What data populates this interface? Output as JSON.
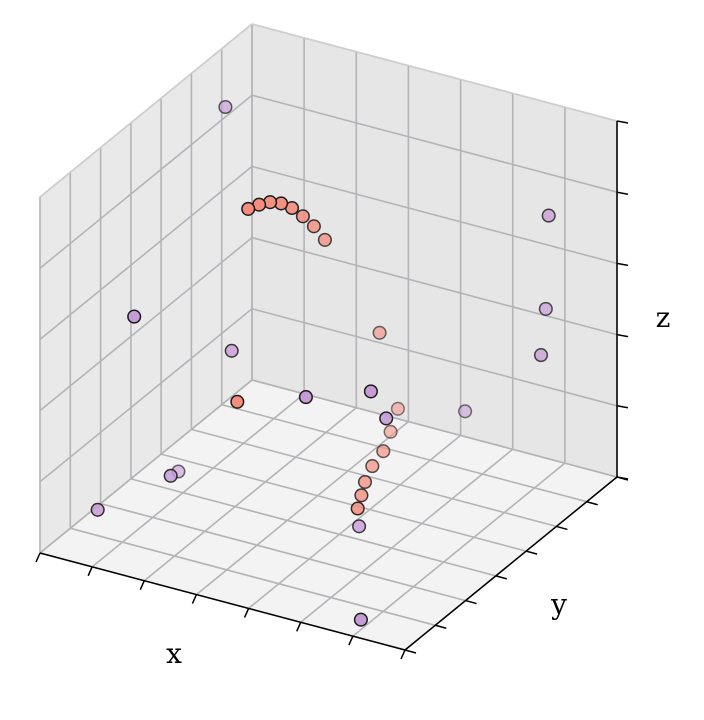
{
  "chart_data": {
    "type": "scatter",
    "title": "",
    "xlabel": "x",
    "ylabel": "y",
    "zlabel": "z",
    "grid": true,
    "tick_labels_shown": false,
    "colors": {
      "purple": "#c79bd6",
      "salmon": "#f58c7d",
      "edge": "#1a1a1a",
      "pane_left": "#e9e9e9",
      "pane_right": "#e6e6e6",
      "pane_floor": "#f3f3f3",
      "grid": "#b4b4b8"
    },
    "points": [
      {
        "x": 0.9,
        "y": 0.85,
        "z": 0.78,
        "group": "purple",
        "alpha": 0.75
      },
      {
        "x": 0.2,
        "y": 0.1,
        "z": 0.67,
        "group": "purple",
        "alpha": 1.0
      },
      {
        "x": 0.95,
        "y": 0.75,
        "z": 0.58,
        "group": "purple",
        "alpha": 0.7
      },
      {
        "x": 0.38,
        "y": 0.25,
        "z": 0.55,
        "group": "purple",
        "alpha": 0.8
      },
      {
        "x": 0.02,
        "y": 0.84,
        "z": 0.85,
        "group": "purple",
        "alpha": 0.65
      },
      {
        "x": 0.6,
        "y": 0.6,
        "z": 0.25,
        "group": "purple",
        "alpha": 0.9
      },
      {
        "x": 0.5,
        "y": 0.7,
        "z": 0.25,
        "group": "purple",
        "alpha": 1.0
      },
      {
        "x": 0.38,
        "y": 0.6,
        "z": 0.25,
        "group": "purple",
        "alpha": 1.0
      },
      {
        "x": 0.3,
        "y": 0.1,
        "z": 0.25,
        "group": "purple",
        "alpha": 0.85
      },
      {
        "x": 0.7,
        "y": 0.3,
        "z": 0.12,
        "group": "purple",
        "alpha": 0.8
      },
      {
        "x": 0.85,
        "y": 0.05,
        "z": 0.02,
        "group": "purple",
        "alpha": 1.0
      },
      {
        "x": 0.7,
        "y": 0.8,
        "z": 0.2,
        "group": "purple",
        "alpha": 0.55
      },
      {
        "x": 0.1,
        "y": 0.1,
        "z": 0.1,
        "group": "purple",
        "alpha": 0.85
      },
      {
        "x": 0.85,
        "y": 0.9,
        "z": 0.35,
        "group": "purple",
        "alpha": 0.75
      },
      {
        "x": 0.35,
        "y": 0.05,
        "z": 0.3,
        "group": "purple",
        "alpha": 0.6
      },
      {
        "x": 0.25,
        "y": 0.5,
        "z": 0.25,
        "group": "salmon",
        "alpha": 1.0
      },
      {
        "x": 0.28,
        "y": 0.5,
        "z": 0.8,
        "group": "salmon",
        "alpha": 1.0
      },
      {
        "x": 0.31,
        "y": 0.5,
        "z": 0.82,
        "group": "salmon",
        "alpha": 1.0
      },
      {
        "x": 0.34,
        "y": 0.5,
        "z": 0.835,
        "group": "salmon",
        "alpha": 0.95
      },
      {
        "x": 0.37,
        "y": 0.5,
        "z": 0.84,
        "group": "salmon",
        "alpha": 0.95
      },
      {
        "x": 0.4,
        "y": 0.5,
        "z": 0.835,
        "group": "salmon",
        "alpha": 0.9
      },
      {
        "x": 0.43,
        "y": 0.5,
        "z": 0.82,
        "group": "salmon",
        "alpha": 0.85
      },
      {
        "x": 0.46,
        "y": 0.5,
        "z": 0.8,
        "group": "salmon",
        "alpha": 0.8
      },
      {
        "x": 0.49,
        "y": 0.5,
        "z": 0.77,
        "group": "salmon",
        "alpha": 0.75
      },
      {
        "x": 0.64,
        "y": 0.5,
        "z": 0.55,
        "group": "salmon",
        "alpha": 0.6
      },
      {
        "x": 0.69,
        "y": 0.5,
        "z": 0.35,
        "group": "salmon",
        "alpha": 0.5
      },
      {
        "x": 0.67,
        "y": 0.5,
        "z": 0.28,
        "group": "salmon",
        "alpha": 0.55
      },
      {
        "x": 0.65,
        "y": 0.5,
        "z": 0.22,
        "group": "salmon",
        "alpha": 0.65
      },
      {
        "x": 0.62,
        "y": 0.5,
        "z": 0.17,
        "group": "salmon",
        "alpha": 0.7
      },
      {
        "x": 0.6,
        "y": 0.5,
        "z": 0.12,
        "group": "salmon",
        "alpha": 0.75
      },
      {
        "x": 0.59,
        "y": 0.5,
        "z": 0.08,
        "group": "salmon",
        "alpha": 0.8
      },
      {
        "x": 0.58,
        "y": 0.5,
        "z": 0.04,
        "group": "salmon",
        "alpha": 0.85
      }
    ]
  }
}
